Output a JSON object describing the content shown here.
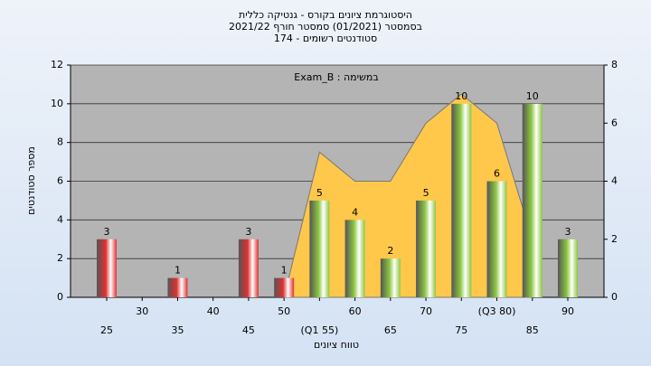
{
  "chart_data": {
    "type": "bar",
    "title": [
      "היסטוגרמת ציונים בקורס - גנטיקה כללית",
      "בסמסטר (01/2021) סמסטר חורף 2021/22",
      "סטודנטים רשומים - 174"
    ],
    "annotation": "במשימה : Exam_B",
    "ylabel": "מספר סטודנטים",
    "xlabel": "טווח ציונים",
    "categories": [
      "25",
      "30",
      "35",
      "40",
      "45",
      "50",
      "(Q1 55)",
      "60",
      "65",
      "70",
      "75",
      "(Q3 80)",
      "85",
      "90"
    ],
    "series": [
      {
        "values": [
          3,
          null,
          1,
          null,
          3,
          1,
          5,
          4,
          2,
          5,
          10,
          6,
          10,
          3
        ],
        "colors": [
          "#e03030",
          null,
          "#e03030",
          null,
          "#e03030",
          "#e03030",
          "#8cc63f",
          "#8cc63f",
          "#8cc63f",
          "#8cc63f",
          "#8cc63f",
          "#8cc63f",
          "#8cc63f",
          "#8cc63f"
        ]
      },
      {
        "type": "area",
        "axis": "y2",
        "color": "#ffc84a",
        "values": [
          null,
          null,
          null,
          null,
          null,
          0,
          5,
          4,
          4,
          6,
          7,
          6,
          2,
          null
        ]
      }
    ],
    "ylim": [
      0,
      12
    ],
    "yticks": [
      0,
      2,
      4,
      6,
      8,
      10,
      12
    ],
    "y2lim": [
      0,
      8
    ],
    "y2ticks": [
      0,
      2,
      4,
      6,
      8
    ],
    "grid": true
  }
}
